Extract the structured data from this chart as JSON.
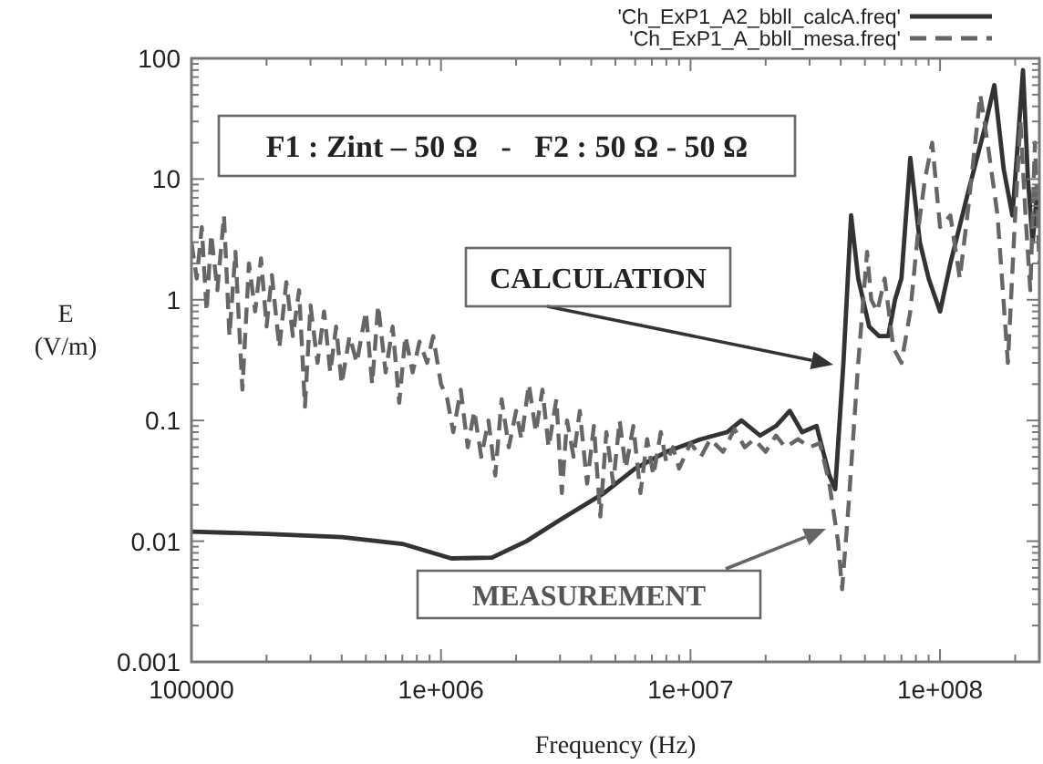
{
  "chart_data": {
    "type": "line",
    "xlabel": "Frequency (Hz)",
    "ylabel": "E (V/m)",
    "log": "xy",
    "grid": false,
    "legend": "top right",
    "marker": "none",
    "xlim": [
      100000,
      250000000
    ],
    "ylim": [
      0.001,
      100
    ],
    "xticks": [
      {
        "value": 100000,
        "label": "100000"
      },
      {
        "value": 200000,
        "label": null
      },
      {
        "value": 300000,
        "label": null
      },
      {
        "value": 400000,
        "label": null
      },
      {
        "value": 500000,
        "label": null
      },
      {
        "value": 600000,
        "label": null
      },
      {
        "value": 700000,
        "label": null
      },
      {
        "value": 800000,
        "label": null
      },
      {
        "value": 900000,
        "label": null
      },
      {
        "value": 1000000,
        "label": "1e+006"
      },
      {
        "value": 2000000,
        "label": null
      },
      {
        "value": 3000000,
        "label": null
      },
      {
        "value": 4000000,
        "label": null
      },
      {
        "value": 5000000,
        "label": null
      },
      {
        "value": 6000000,
        "label": null
      },
      {
        "value": 7000000,
        "label": null
      },
      {
        "value": 8000000,
        "label": null
      },
      {
        "value": 9000000,
        "label": null
      },
      {
        "value": 10000000,
        "label": "1e+007"
      },
      {
        "value": 20000000,
        "label": null
      },
      {
        "value": 30000000,
        "label": null
      },
      {
        "value": 40000000,
        "label": null
      },
      {
        "value": 50000000,
        "label": null
      },
      {
        "value": 60000000,
        "label": null
      },
      {
        "value": 70000000,
        "label": null
      },
      {
        "value": 80000000,
        "label": null
      },
      {
        "value": 90000000,
        "label": null
      },
      {
        "value": 100000000,
        "label": "1e+008"
      },
      {
        "value": 200000000,
        "label": null
      }
    ],
    "yticks": [
      0.001,
      {
        "value": 0.002,
        "label": null
      },
      {
        "value": 0.003,
        "label": null
      },
      {
        "value": 0.004,
        "label": null
      },
      {
        "value": 0.005,
        "label": null
      },
      {
        "value": 0.006,
        "label": null
      },
      {
        "value": 0.007,
        "label": null
      },
      {
        "value": 0.008,
        "label": null
      },
      {
        "value": 0.009,
        "label": null
      },
      0.01,
      {
        "value": 0.02,
        "label": null
      },
      {
        "value": 0.03,
        "label": null
      },
      {
        "value": 0.04,
        "label": null
      },
      {
        "value": 0.05,
        "label": null
      },
      {
        "value": 0.06,
        "label": null
      },
      {
        "value": 0.07,
        "label": null
      },
      {
        "value": 0.08,
        "label": null
      },
      {
        "value": 0.09,
        "label": null
      },
      0.1,
      {
        "value": 0.2,
        "label": null
      },
      {
        "value": 0.3,
        "label": null
      },
      {
        "value": 0.4,
        "label": null
      },
      {
        "value": 0.5,
        "label": null
      },
      {
        "value": 0.6,
        "label": null
      },
      {
        "value": 0.7,
        "label": null
      },
      {
        "value": 0.8,
        "label": null
      },
      {
        "value": 0.9,
        "label": null
      },
      1,
      {
        "value": 2,
        "label": null
      },
      {
        "value": 3,
        "label": null
      },
      {
        "value": 4,
        "label": null
      },
      {
        "value": 5,
        "label": null
      },
      {
        "value": 6,
        "label": null
      },
      {
        "value": 7,
        "label": null
      },
      {
        "value": 8,
        "label": null
      },
      {
        "value": 9,
        "label": null
      },
      10,
      {
        "value": 20,
        "label": null
      },
      {
        "value": 30,
        "label": null
      },
      {
        "value": 40,
        "label": null
      },
      {
        "value": 50,
        "label": null
      },
      {
        "value": 60,
        "label": null
      },
      {
        "value": 70,
        "label": null
      },
      {
        "value": 80,
        "label": null
      },
      {
        "value": 90,
        "label": null
      },
      100
    ],
    "annotations": [
      "F1 : Zint – 50 Ω   -   F2 : 50 Ω - 50 Ω",
      "CALCULATION",
      "MEASUREMENT"
    ],
    "series": [
      {
        "name": "'Ch_ExP1_A2_bbll_calcA.freq'",
        "color": "#333333",
        "line_style": "solid",
        "x": [
          100000,
          200000,
          400000,
          700000,
          1100000,
          1600000,
          2200000,
          3000000,
          4500000,
          6000000,
          8000000,
          11000000,
          14000000,
          16000000,
          19000000,
          22000000,
          25000000,
          28000000,
          32000000,
          36000000,
          38000000,
          41000000,
          44000000,
          47000000,
          52000000,
          57000000,
          62000000,
          66000000,
          70000000,
          76000000,
          83000000,
          90000000,
          100000000,
          110000000,
          130000000,
          150000000,
          165000000,
          180000000,
          195000000,
          205000000,
          215000000,
          225000000,
          235000000,
          245000000,
          250000000
        ],
        "values": [
          0.012,
          0.0115,
          0.0108,
          0.0095,
          0.0072,
          0.0073,
          0.01,
          0.015,
          0.025,
          0.04,
          0.055,
          0.07,
          0.08,
          0.1,
          0.075,
          0.09,
          0.12,
          0.08,
          0.09,
          0.035,
          0.027,
          0.3,
          5,
          1.5,
          0.6,
          0.5,
          0.5,
          1,
          1.5,
          15,
          3,
          1.5,
          0.8,
          2,
          8,
          25,
          60,
          12,
          5,
          20,
          80,
          10,
          3,
          8,
          4
        ]
      },
      {
        "name": "'Ch_ExP1_A_bbll_mesa.freq'",
        "color": "#666666",
        "line_style": "dashed",
        "x": [
          100000,
          105000,
          110000,
          115000,
          120000,
          127000,
          135000,
          142000,
          150000,
          160000,
          170000,
          180000,
          190000,
          200000,
          210000,
          225000,
          240000,
          255000,
          270000,
          285000,
          300000,
          320000,
          340000,
          360000,
          380000,
          400000,
          430000,
          460000,
          500000,
          530000,
          560000,
          600000,
          640000,
          680000,
          720000,
          770000,
          820000,
          880000,
          930000,
          1000000,
          1060000,
          1120000,
          1200000,
          1280000,
          1360000,
          1450000,
          1550000,
          1650000,
          1750000,
          1870000,
          2000000,
          2100000,
          2250000,
          2400000,
          2550000,
          2700000,
          2900000,
          3050000,
          3200000,
          3400000,
          3600000,
          3850000,
          4100000,
          4350000,
          4600000,
          4900000,
          5200000,
          5500000,
          5900000,
          6300000,
          6700000,
          7100000,
          7600000,
          8000000,
          8500000,
          9000000,
          10000000,
          11000000,
          12000000,
          13500000,
          15000000,
          16500000,
          18000000,
          20000000,
          22000000,
          24000000,
          27000000,
          30000000,
          33000000,
          36000000,
          39000000,
          40500000,
          43000000,
          47000000,
          51000000,
          53000000,
          56000000,
          60000000,
          65000000,
          70000000,
          76000000,
          82000000,
          87000000,
          93000000,
          100000000,
          110000000,
          120000000,
          130000000,
          145000000,
          155000000,
          170000000,
          187000000,
          200000000,
          210000000,
          220000000,
          230000000,
          240000000,
          250000000
        ],
        "values": [
          3,
          1.5,
          4,
          0.8,
          3.5,
          1.2,
          5,
          0.5,
          2.5,
          0.18,
          2,
          0.8,
          2.2,
          0.6,
          1.6,
          0.4,
          1.4,
          0.5,
          1.2,
          0.13,
          0.9,
          0.3,
          0.8,
          0.25,
          0.6,
          0.2,
          0.5,
          0.3,
          0.8,
          0.2,
          0.9,
          0.25,
          0.6,
          0.14,
          0.5,
          0.25,
          0.45,
          0.3,
          0.5,
          0.2,
          0.15,
          0.08,
          0.18,
          0.06,
          0.12,
          0.05,
          0.1,
          0.035,
          0.15,
          0.06,
          0.12,
          0.07,
          0.2,
          0.08,
          0.18,
          0.06,
          0.15,
          0.025,
          0.1,
          0.05,
          0.12,
          0.03,
          0.09,
          0.016,
          0.08,
          0.03,
          0.1,
          0.04,
          0.09,
          0.025,
          0.07,
          0.035,
          0.08,
          0.045,
          0.06,
          0.04,
          0.065,
          0.05,
          0.07,
          0.055,
          0.085,
          0.06,
          0.07,
          0.055,
          0.075,
          0.06,
          0.07,
          0.06,
          0.065,
          0.03,
          0.01,
          0.004,
          0.02,
          0.3,
          2.5,
          1,
          0.8,
          1.5,
          0.4,
          0.3,
          0.8,
          4,
          10,
          20,
          4,
          5,
          1.5,
          6,
          50,
          20,
          5,
          0.3,
          5,
          30,
          5,
          1.2,
          20,
          2
        ]
      }
    ]
  }
}
